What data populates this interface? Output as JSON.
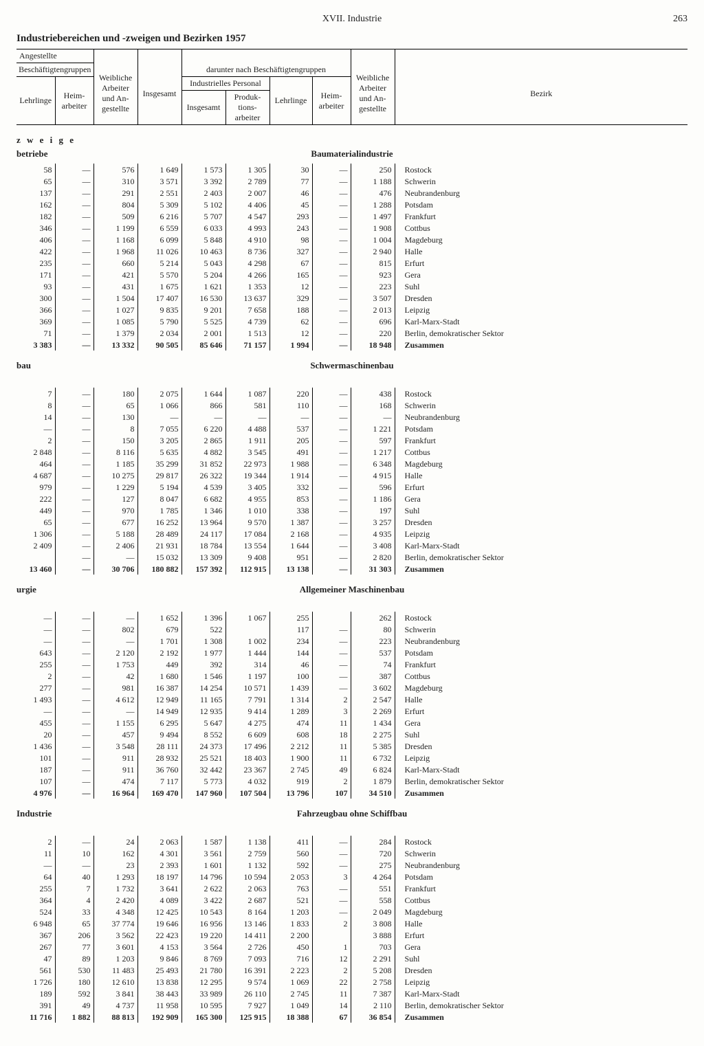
{
  "running_head": {
    "chapter": "XVII. Industrie",
    "page": "263"
  },
  "title": "Industriebereichen und -zweigen und Bezirken 1957",
  "header": {
    "angestellte": "Angestellte",
    "besch_gruppen": "Beschäftigtengruppen",
    "lehrlinge": "Lehrlinge",
    "heimarbeiter": "Heim-\narbeiter",
    "weibl": "Weibliche\nArbeiter\nund An-\ngestellte",
    "insgesamt": "Insgesamt",
    "darunter": "darunter nach Beschäftigtengruppen",
    "ind_personal": "Industrielles Personal",
    "prod_arbeiter": "Produk-\ntions-\narbeiter",
    "bezirk": "Bezirk"
  },
  "stub": {
    "zweige": "z w e i g e",
    "bau": "bau",
    "urgie": "urgie",
    "industrie": "Industrie",
    "betriebe": "betriebe"
  },
  "bezirke": [
    "Rostock",
    "Schwerin",
    "Neubrandenburg",
    "Potsdam",
    "Frankfurt",
    "Cottbus",
    "Magdeburg",
    "Halle",
    "Erfurt",
    "Gera",
    "Suhl",
    "Dresden",
    "Leipzig",
    "Karl-Marx-Stadt",
    "Berlin, demokratischer Sektor",
    "Zusammen"
  ],
  "sections": [
    {
      "title": "Baumaterialindustrie",
      "stub1": "zweige",
      "stub2": "betriebe",
      "rows": [
        [
          "58",
          "—",
          "576",
          "1 649",
          "1 573",
          "1 305",
          "30",
          "—",
          "250"
        ],
        [
          "65",
          "—",
          "310",
          "3 571",
          "3 392",
          "2 789",
          "77",
          "—",
          "1 188"
        ],
        [
          "137",
          "—",
          "291",
          "2 551",
          "2 403",
          "2 007",
          "46",
          "—",
          "476"
        ],
        [
          "162",
          "—",
          "804",
          "5 309",
          "5 102",
          "4 406",
          "45",
          "—",
          "1 288"
        ],
        [
          "182",
          "—",
          "509",
          "6 216",
          "5 707",
          "4 547",
          "293",
          "—",
          "1 497"
        ],
        [
          "346",
          "—",
          "1 199",
          "6 559",
          "6 033",
          "4 993",
          "243",
          "—",
          "1 908"
        ],
        [
          "406",
          "—",
          "1 168",
          "6 099",
          "5 848",
          "4 910",
          "98",
          "—",
          "1 004"
        ],
        [
          "422",
          "—",
          "1 968",
          "11 026",
          "10 463",
          "8 736",
          "327",
          "—",
          "2 940"
        ],
        [
          "235",
          "—",
          "660",
          "5 214",
          "5 043",
          "4 298",
          "67",
          "—",
          "815"
        ],
        [
          "171",
          "—",
          "421",
          "5 570",
          "5 204",
          "4 266",
          "165",
          "—",
          "923"
        ],
        [
          "93",
          "—",
          "431",
          "1 675",
          "1 621",
          "1 353",
          "12",
          "—",
          "223"
        ],
        [
          "300",
          "—",
          "1 504",
          "17 407",
          "16 530",
          "13 637",
          "329",
          "—",
          "3 507"
        ],
        [
          "366",
          "—",
          "1 027",
          "9 835",
          "9 201",
          "7 658",
          "188",
          "—",
          "2 013"
        ],
        [
          "369",
          "—",
          "1 085",
          "5 790",
          "5 525",
          "4 739",
          "62",
          "—",
          "696"
        ],
        [
          "71",
          "—",
          "1 379",
          "2 034",
          "2 001",
          "1 513",
          "12",
          "—",
          "220"
        ],
        [
          "3 383",
          "—",
          "13 332",
          "90 505",
          "85 646",
          "71 157",
          "1 994",
          "—",
          "18 948"
        ]
      ]
    },
    {
      "title": "Schwermaschinenbau",
      "stub1": "bau",
      "stub2": "",
      "rows": [
        [
          "7",
          "—",
          "180",
          "2 075",
          "1 644",
          "1 087",
          "220",
          "—",
          "438"
        ],
        [
          "8",
          "—",
          "65",
          "1 066",
          "866",
          "581",
          "110",
          "—",
          "168"
        ],
        [
          "14",
          "—",
          "130",
          "—",
          "—",
          "—",
          "—",
          "—",
          "—"
        ],
        [
          "—",
          "—",
          "8",
          "7 055",
          "6 220",
          "4 488",
          "537",
          "—",
          "1 221"
        ],
        [
          "2",
          "—",
          "150",
          "3 205",
          "2 865",
          "1 911",
          "205",
          "—",
          "597"
        ],
        [
          "2 848",
          "—",
          "8 116",
          "5 635",
          "4 882",
          "3 545",
          "491",
          "—",
          "1 217"
        ],
        [
          "464",
          "—",
          "1 185",
          "35 299",
          "31 852",
          "22 973",
          "1 988",
          "—",
          "6 348"
        ],
        [
          "4 687",
          "—",
          "10 275",
          "29 817",
          "26 322",
          "19 344",
          "1 914",
          "—",
          "4 915"
        ],
        [
          "979",
          "—",
          "1 229",
          "5 194",
          "4 539",
          "3 405",
          "332",
          "—",
          "596"
        ],
        [
          "222",
          "—",
          "127",
          "8 047",
          "6 682",
          "4 955",
          "853",
          "—",
          "1 186"
        ],
        [
          "449",
          "—",
          "970",
          "1 785",
          "1 346",
          "1 010",
          "338",
          "—",
          "197"
        ],
        [
          "65",
          "—",
          "677",
          "16 252",
          "13 964",
          "9 570",
          "1 387",
          "—",
          "3 257"
        ],
        [
          "1 306",
          "—",
          "5 188",
          "28 489",
          "24 117",
          "17 084",
          "2 168",
          "—",
          "4 935"
        ],
        [
          "2 409",
          "—",
          "2 406",
          "21 931",
          "18 784",
          "13 554",
          "1 644",
          "—",
          "3 408"
        ],
        [
          "",
          "—",
          "—",
          "15 032",
          "13 309",
          "9 408",
          "951",
          "—",
          "2 820"
        ],
        [
          "13 460",
          "—",
          "30 706",
          "180 882",
          "157 392",
          "112 915",
          "13 138",
          "—",
          "31 303"
        ]
      ]
    },
    {
      "title": "Allgemeiner Maschinenbau",
      "stub1": "urgie",
      "stub2": "",
      "rows": [
        [
          "—",
          "—",
          "—",
          "1 652",
          "1 396",
          "1 067",
          "255",
          "",
          "262"
        ],
        [
          "—",
          "—",
          "802",
          "679",
          "522",
          "",
          "117",
          "—",
          "80"
        ],
        [
          "—",
          "—",
          "—",
          "1 701",
          "1 308",
          "1 002",
          "234",
          "—",
          "223"
        ],
        [
          "643",
          "—",
          "2 120",
          "2 192",
          "1 977",
          "1 444",
          "144",
          "—",
          "537"
        ],
        [
          "255",
          "—",
          "1 753",
          "449",
          "392",
          "314",
          "46",
          "—",
          "74"
        ],
        [
          "2",
          "—",
          "42",
          "1 680",
          "1 546",
          "1 197",
          "100",
          "—",
          "387"
        ],
        [
          "277",
          "—",
          "981",
          "16 387",
          "14 254",
          "10 571",
          "1 439",
          "—",
          "3 602"
        ],
        [
          "1 493",
          "—",
          "4 612",
          "12 949",
          "11 165",
          "7 791",
          "1 314",
          "2",
          "2 547"
        ],
        [
          "—",
          "—",
          "—",
          "14 949",
          "12 935",
          "9 414",
          "1 289",
          "3",
          "2 269"
        ],
        [
          "455",
          "—",
          "1 155",
          "6 295",
          "5 647",
          "4 275",
          "474",
          "11",
          "1 434"
        ],
        [
          "20",
          "—",
          "457",
          "9 494",
          "8 552",
          "6 609",
          "608",
          "18",
          "2 275"
        ],
        [
          "1 436",
          "—",
          "3 548",
          "28 111",
          "24 373",
          "17 496",
          "2 212",
          "11",
          "5 385"
        ],
        [
          "101",
          "—",
          "911",
          "28 932",
          "25 521",
          "18 403",
          "1 900",
          "11",
          "6 732"
        ],
        [
          "187",
          "—",
          "911",
          "36 760",
          "32 442",
          "23 367",
          "2 745",
          "49",
          "6 824"
        ],
        [
          "107",
          "—",
          "474",
          "7 117",
          "5 773",
          "4 032",
          "919",
          "2",
          "1 879"
        ],
        [
          "4 976",
          "—",
          "16 964",
          "169 470",
          "147 960",
          "107 504",
          "13 796",
          "107",
          "34 510"
        ]
      ]
    },
    {
      "title": "Fahrzeugbau ohne Schiffbau",
      "stub1": "industrie",
      "stub2": "",
      "rows": [
        [
          "2",
          "—",
          "24",
          "2 063",
          "1 587",
          "1 138",
          "411",
          "—",
          "284"
        ],
        [
          "11",
          "10",
          "162",
          "4 301",
          "3 561",
          "2 759",
          "560",
          "—",
          "720"
        ],
        [
          "—",
          "—",
          "23",
          "2 393",
          "1 601",
          "1 132",
          "592",
          "—",
          "275"
        ],
        [
          "64",
          "40",
          "1 293",
          "18 197",
          "14 796",
          "10 594",
          "2 053",
          "3",
          "4 264"
        ],
        [
          "255",
          "7",
          "1 732",
          "3 641",
          "2 622",
          "2 063",
          "763",
          "—",
          "551"
        ],
        [
          "364",
          "4",
          "2 420",
          "4 089",
          "3 422",
          "2 687",
          "521",
          "—",
          "558"
        ],
        [
          "524",
          "33",
          "4 348",
          "12 425",
          "10 543",
          "8 164",
          "1 203",
          "—",
          "2 049"
        ],
        [
          "6 948",
          "65",
          "37 774",
          "19 646",
          "16 956",
          "13 146",
          "1 833",
          "2",
          "3 808"
        ],
        [
          "367",
          "206",
          "3 562",
          "22 423",
          "19 220",
          "14 411",
          "2 200",
          "",
          "3 888"
        ],
        [
          "267",
          "77",
          "3 601",
          "4 153",
          "3 564",
          "2 726",
          "450",
          "1",
          "703"
        ],
        [
          "47",
          "89",
          "1 203",
          "9 846",
          "8 769",
          "7 093",
          "716",
          "12",
          "2 291"
        ],
        [
          "561",
          "530",
          "11 483",
          "25 493",
          "21 780",
          "16 391",
          "2 223",
          "2",
          "5 208"
        ],
        [
          "1 726",
          "180",
          "12 610",
          "13 838",
          "12 295",
          "9 574",
          "1 069",
          "22",
          "2 758"
        ],
        [
          "189",
          "592",
          "3 841",
          "38 443",
          "33 989",
          "26 110",
          "2 745",
          "11",
          "7 387"
        ],
        [
          "391",
          "49",
          "4 737",
          "11 958",
          "10 595",
          "7 927",
          "1 049",
          "14",
          "2 110"
        ],
        [
          "11 716",
          "1 882",
          "88 813",
          "192 909",
          "165 300",
          "125 915",
          "18 388",
          "67",
          "36 854"
        ]
      ]
    }
  ]
}
